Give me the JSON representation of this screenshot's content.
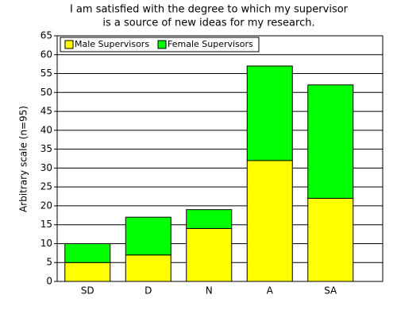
{
  "chart_data": {
    "type": "stacked_bar",
    "title": [
      "I am satisfied with the degree to which my supervisor",
      "is a source of new ideas for my research."
    ],
    "y_label": "Arbitrary scale (n=95)",
    "categories": [
      "SD",
      "D",
      "N",
      "A",
      "SA"
    ],
    "series": [
      {
        "name": "Male Supervisors",
        "color": "#ffff00",
        "values": [
          5,
          7,
          14,
          32,
          22
        ]
      },
      {
        "name": "Female Supervisors",
        "color": "#00ff00",
        "values": [
          5,
          10,
          5,
          25,
          30
        ]
      }
    ],
    "ylim": [
      0,
      65
    ],
    "yticks": [
      0,
      5,
      10,
      15,
      20,
      25,
      30,
      35,
      40,
      45,
      50,
      55,
      60,
      65
    ],
    "grid": true,
    "legend": "top-left"
  }
}
